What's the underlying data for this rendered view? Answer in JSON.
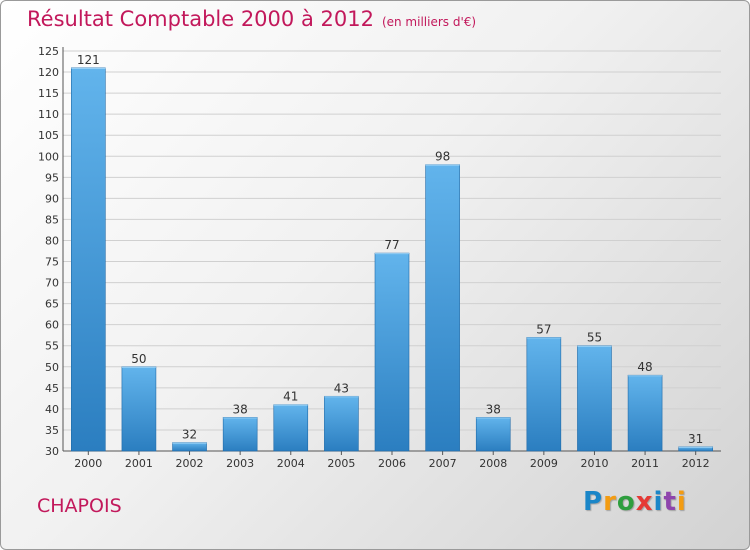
{
  "header": {
    "title": "Résultat Comptable 2000 à 2012",
    "unit": "(en milliers d'€)"
  },
  "commune": "CHAPOIS",
  "logo": {
    "text": "Proxiti",
    "letters": [
      "P",
      "r",
      "o",
      "x",
      "i",
      "t",
      "i"
    ]
  },
  "colors": {
    "title": "#c2185b",
    "bar_light": "#62b4ec",
    "bar_dark": "#2b7ec0",
    "background": "#e8e8e8"
  },
  "chart_data": {
    "type": "bar",
    "title": "Résultat Comptable 2000 à 2012",
    "subtitle": "(en milliers d'€)",
    "xlabel": "",
    "ylabel": "",
    "categories": [
      "2000",
      "2001",
      "2002",
      "2003",
      "2004",
      "2005",
      "2006",
      "2007",
      "2008",
      "2009",
      "2010",
      "2011",
      "2012"
    ],
    "values": [
      121,
      50,
      32,
      38,
      41,
      43,
      77,
      98,
      38,
      57,
      55,
      48,
      31
    ],
    "value_labels": [
      "121",
      "50",
      "32",
      "38",
      "41",
      "43",
      "77",
      "98",
      "38",
      "57",
      "55",
      "48",
      "31"
    ],
    "ylim": [
      30,
      125
    ],
    "yticks": [
      "30",
      "35",
      "40",
      "45",
      "50",
      "55",
      "60",
      "65",
      "70",
      "75",
      "80",
      "85",
      "90",
      "95",
      "100",
      "105",
      "110",
      "115",
      "120",
      "125"
    ],
    "grid": true,
    "legend": "none"
  }
}
